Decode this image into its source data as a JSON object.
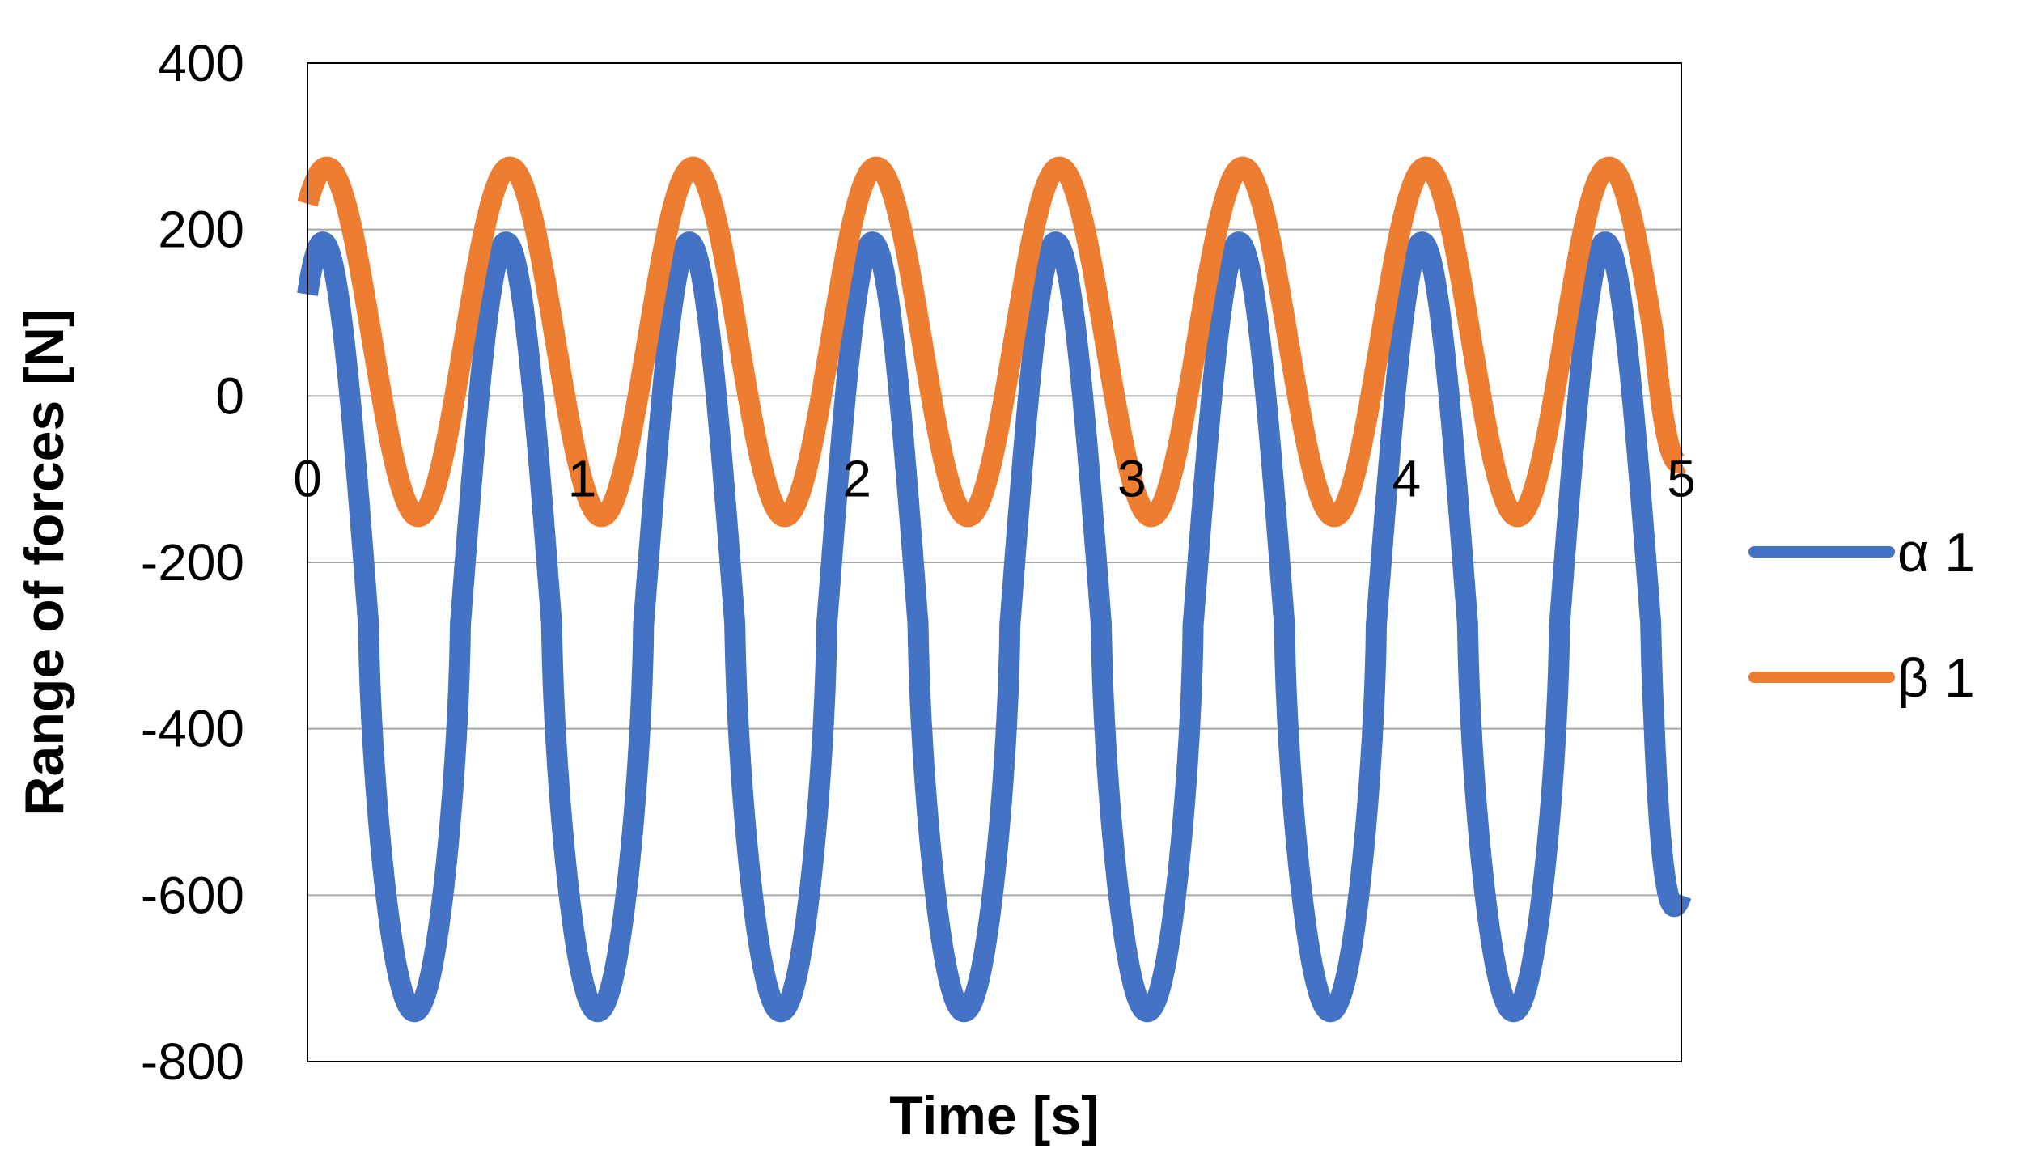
{
  "chart_data": {
    "type": "line",
    "title": "",
    "xlabel": "Time [s]",
    "ylabel": "Range of forces [N]",
    "xlim": [
      0,
      5
    ],
    "ylim": [
      -800,
      400
    ],
    "x_ticks": [
      0,
      1,
      2,
      3,
      4,
      5
    ],
    "x_tick_labels": [
      "0",
      "1",
      "2",
      "3",
      "4",
      "5"
    ],
    "y_ticks": [
      400,
      200,
      0,
      -200,
      -400,
      -600,
      -800
    ],
    "y_tick_labels": [
      "400",
      "200",
      "0",
      "-200",
      "-400",
      "-600",
      "-800"
    ],
    "grid": "horizontal",
    "legend_position": "right",
    "period_s": 0.6667,
    "series": [
      {
        "name": "α 1",
        "color": "#4472c4",
        "phase_peak_s": 0.056,
        "max": 185,
        "min": -740,
        "peak_times_s": [
          0.056,
          0.722,
          1.389,
          2.056,
          2.722,
          3.389,
          4.056,
          4.722
        ],
        "trough_times_s": [
          0.42,
          1.087,
          1.753,
          2.42,
          3.087,
          3.753,
          4.42
        ],
        "end_value": -600
      },
      {
        "name": "β 1",
        "color": "#ed7d31",
        "phase_peak_s": 0.07,
        "max": 275,
        "min": -145,
        "peak_times_s": [
          0.07,
          0.737,
          1.403,
          2.07,
          2.737,
          3.403,
          4.07,
          4.737
        ],
        "trough_times_s": [
          0.42,
          1.087,
          1.753,
          2.42,
          3.087,
          3.753,
          4.42
        ],
        "end_value": -80
      }
    ]
  }
}
